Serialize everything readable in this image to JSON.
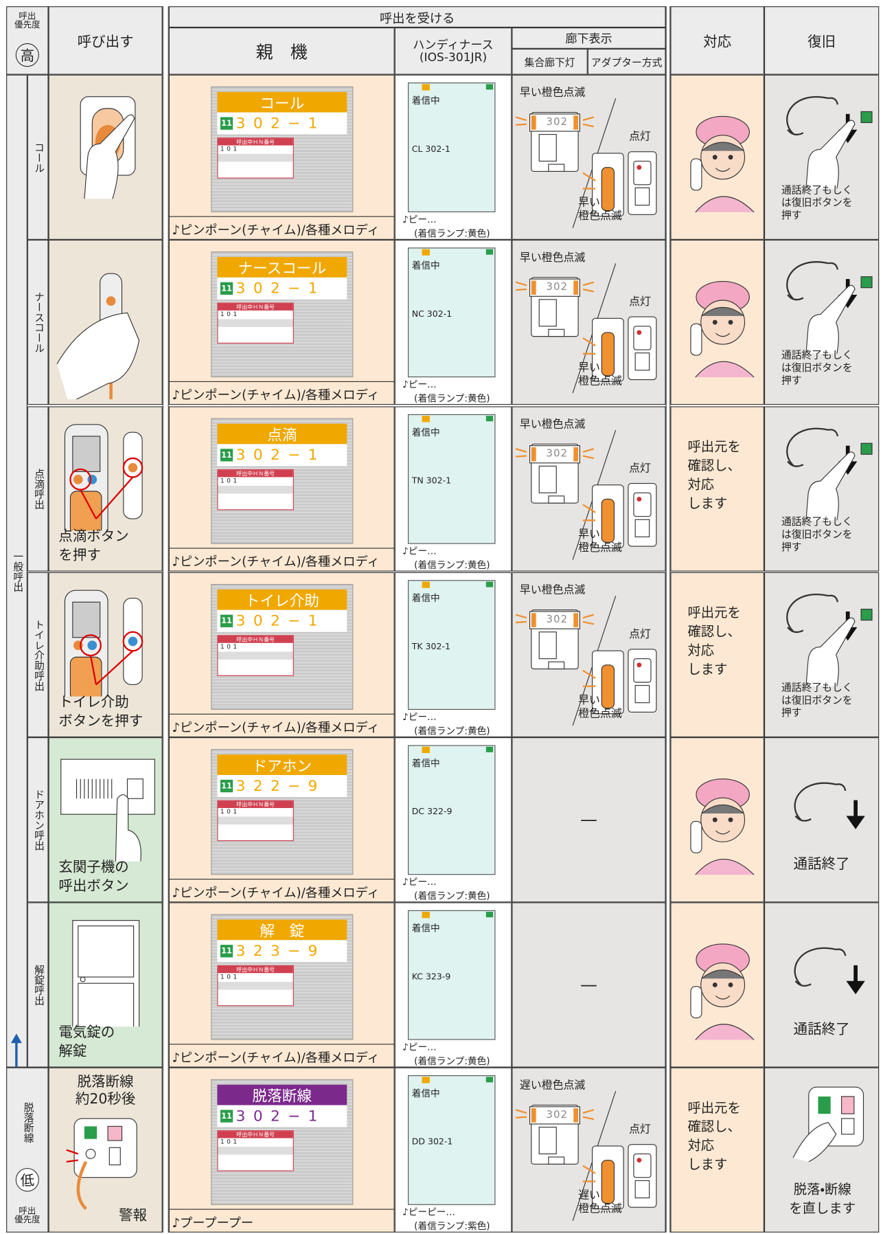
{
  "header": {
    "priority_label": "呼出\n優先度",
    "priority_high": "高",
    "call": "呼び出す",
    "receive": "呼出を受ける",
    "master": "親　機",
    "handy": "ハンディナース",
    "handy_model": "(IOS-301JR)",
    "corridor": "廊下表示",
    "corridor_lamp": "集合廊下灯",
    "adapter": "アダプター方式",
    "response": "対応",
    "recovery": "復旧"
  },
  "general_label": "一般呼出",
  "rows": [
    {
      "label": "コール",
      "caller_bg": "#ede6d8",
      "screen": {
        "title": "コール",
        "title_color": "#f0a800",
        "badge": "11",
        "number": "302−1",
        "hn_label": "呼出中ＨＮ番号",
        "hn_value": "101"
      },
      "master_sound": "♪ピンポーン(チャイム)/各種メロディ",
      "handy": {
        "status": "着信中",
        "code": "CL 302-1",
        "sound": "♪ピー…",
        "lamp": "(着信ランプ:黄色)"
      },
      "corridor": {
        "top": "早い橙色点滅",
        "lit": "点灯",
        "bottom": "早い\n橙色点滅",
        "lamp": "302"
      },
      "recovery_text": "通話終了もしく\nは復旧ボタンを\n押す"
    },
    {
      "label": "ナースコール",
      "caller_bg": "#ede6d8",
      "screen": {
        "title": "ナースコール",
        "title_color": "#f0a800",
        "badge": "11",
        "number": "302−1",
        "hn_label": "呼出中ＨＮ番号",
        "hn_value": "101"
      },
      "master_sound": "♪ピンポーン(チャイム)/各種メロディ",
      "handy": {
        "status": "着信中",
        "code": "NC 302-1",
        "sound": "♪ピー…",
        "lamp": "(着信ランプ:黄色)"
      },
      "corridor": {
        "top": "早い橙色点滅",
        "lit": "点灯",
        "bottom": "早い\n橙色点滅",
        "lamp": "302"
      },
      "recovery_text": "通話終了もしく\nは復旧ボタンを\n押す"
    },
    {
      "label": "点滴呼出",
      "caller_bg": "#ede6d8",
      "caller_text": "点滴ボタン\nを押す",
      "screen": {
        "title": "点滴",
        "title_color": "#f0a800",
        "badge": "11",
        "number": "302−1",
        "hn_label": "呼出中ＨＮ番号",
        "hn_value": "101"
      },
      "master_sound": "♪ピンポーン(チャイム)/各種メロディ",
      "handy": {
        "status": "着信中",
        "code": "TN 302-1",
        "sound": "♪ピー…",
        "lamp": "(着信ランプ:黄色)"
      },
      "corridor": {
        "top": "早い橙色点滅",
        "lit": "点灯",
        "bottom": "早い\n橙色点滅",
        "lamp": "302"
      },
      "response_text": "呼出元を\n確認し、\n対応\nします",
      "recovery_text": "通話終了もしく\nは復旧ボタンを\n押す"
    },
    {
      "label": "トイレ介助呼出",
      "caller_bg": "#ede6d8",
      "caller_text": "トイレ介助\nボタンを押す",
      "screen": {
        "title": "トイレ介助",
        "title_color": "#f0a800",
        "badge": "11",
        "number": "302−1",
        "hn_label": "呼出中ＨＮ番号",
        "hn_value": "101"
      },
      "master_sound": "♪ピンポーン(チャイム)/各種メロディ",
      "handy": {
        "status": "着信中",
        "code": "TK 302-1",
        "sound": "♪ピー…",
        "lamp": "(着信ランプ:黄色)"
      },
      "corridor": {
        "top": "早い橙色点滅",
        "lit": "点灯",
        "bottom": "早い\n橙色点滅",
        "lamp": "302"
      },
      "response_text": "呼出元を\n確認し、\n対応\nします",
      "recovery_text": "通話終了もしく\nは復旧ボタンを\n押す"
    },
    {
      "label": "ドアホン呼出",
      "caller_bg": "#d6e9d4",
      "caller_text": "玄関子機の\n呼出ボタン",
      "screen": {
        "title": "ドアホン",
        "title_color": "#f0a800",
        "badge": "11",
        "number": "322−9",
        "hn_label": "呼出中ＨＮ番号",
        "hn_value": "101"
      },
      "master_sound": "♪ピンポーン(チャイム)/各種メロディ",
      "handy": {
        "status": "着信中",
        "code": "DC 322-9",
        "sound": "♪ピー…",
        "lamp": "(着信ランプ:黄色)"
      },
      "corridor_text": "—",
      "recovery_text": "通話終了"
    },
    {
      "label": "解錠呼出",
      "caller_bg": "#d6e9d4",
      "caller_text": "電気錠の\n解錠",
      "screen": {
        "title": "解　錠",
        "title_color": "#f0a800",
        "badge": "11",
        "number": "323−9",
        "hn_label": "呼出中ＨＮ番号",
        "hn_value": "101"
      },
      "master_sound": "♪ピンポーン(チャイム)/各種メロディ",
      "handy": {
        "status": "着信中",
        "code": "KC 323-9",
        "sound": "♪ピー…",
        "lamp": "(着信ランプ:黄色)"
      },
      "corridor_text": "—",
      "recovery_text": "通話終了"
    },
    {
      "label": "脱落断線",
      "caller_bg": "#ede6d8",
      "caller_text_top": "脱落断線\n約20秒後",
      "caller_text": "警報",
      "screen": {
        "title": "脱落断線",
        "title_color": "#7b2a8c",
        "badge": "11",
        "number": "302−1",
        "hn_label": "呼出中ＨＮ番号",
        "hn_value": "101"
      },
      "master_sound": "♪プープープー",
      "handy": {
        "status": "着信中",
        "code": "DD 302-1",
        "sound": "♪ピーピー…",
        "lamp": "(着信ランプ:紫色)"
      },
      "corridor": {
        "top": "遅い橙色点滅",
        "lit": "点灯",
        "bottom": "遅い\n橙色点滅",
        "lamp": "302"
      },
      "response_text": "呼出元を\n確認し、\n対応\nします",
      "recovery_text": "脱落・断線\nを直します"
    }
  ],
  "footer": {
    "priority_low": "低",
    "priority_label": "呼出\n優先度"
  }
}
